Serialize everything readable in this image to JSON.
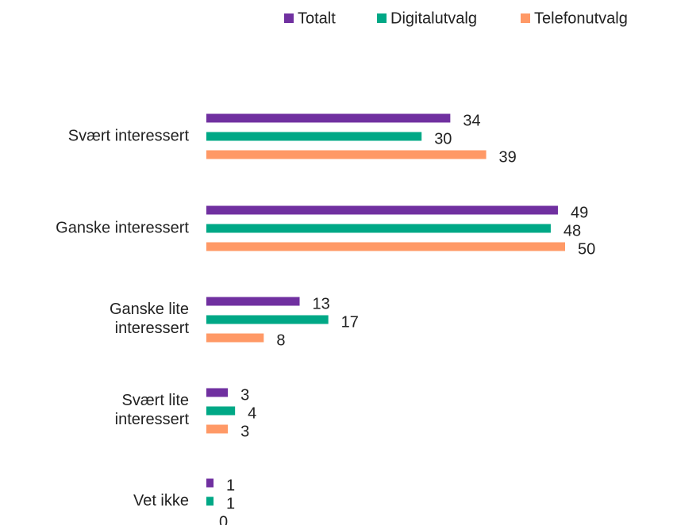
{
  "chart_data": {
    "type": "bar",
    "orientation": "horizontal",
    "categories": [
      "Svært interessert",
      "Ganske interessert",
      "Ganske lite\ninteressert",
      "Svært lite\ninteressert",
      "Vet ikke"
    ],
    "series": [
      {
        "name": "Totalt",
        "color": "#7030a0",
        "values": [
          34,
          49,
          13,
          3,
          1
        ]
      },
      {
        "name": "Digitalutvalg",
        "color": "#00a886",
        "values": [
          30,
          48,
          17,
          4,
          1
        ]
      },
      {
        "name": "Telefonutvalg",
        "color": "#ff9966",
        "values": [
          39,
          50,
          8,
          3,
          0
        ]
      }
    ],
    "xlim": [
      0,
      50
    ],
    "legend": "top-right"
  }
}
